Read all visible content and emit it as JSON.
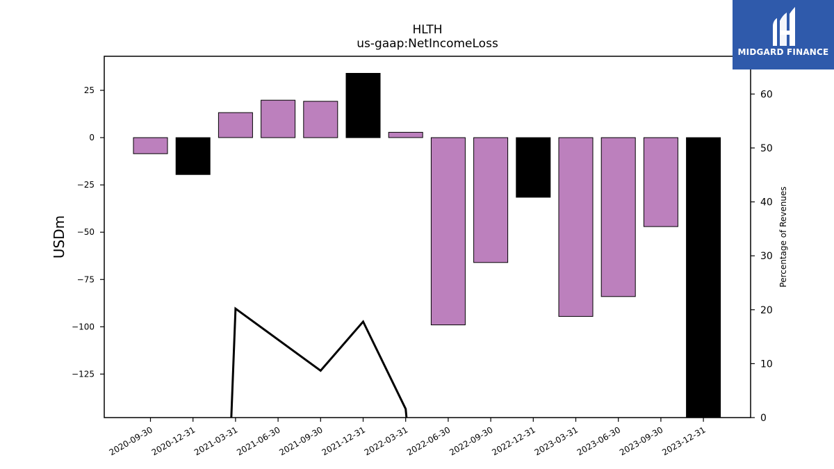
{
  "chart_data": {
    "type": "bar",
    "title": "HLTH",
    "subtitle": "us-gaap:NetIncomeLoss",
    "ylabel": "USDm",
    "y2label": "Percentage of Revenues",
    "categories": [
      "2020-09-30",
      "2020-12-31",
      "2021-03-31",
      "2021-06-30",
      "2021-09-30",
      "2021-12-31",
      "2022-03-31",
      "2022-06-30",
      "2022-09-30",
      "2022-12-31",
      "2023-03-31",
      "2023-06-30",
      "2023-09-30",
      "2023-12-31"
    ],
    "values": [
      -8.5,
      -19.5,
      13.2,
      19.8,
      19.2,
      34.0,
      2.8,
      -99.0,
      -66.0,
      -31.5,
      -94.5,
      -84.0,
      -47.0,
      -148.0
    ],
    "bar_colors": [
      "#bc80bd",
      "#000000",
      "#bc80bd",
      "#bc80bd",
      "#bc80bd",
      "#000000",
      "#bc80bd",
      "#bc80bd",
      "#bc80bd",
      "#000000",
      "#bc80bd",
      "#bc80bd",
      "#bc80bd",
      "#000000"
    ],
    "ylim": [
      -148,
      43
    ],
    "yticks": [
      25,
      0,
      -25,
      -50,
      -75,
      -100,
      -125
    ],
    "y2lim": [
      0,
      67
    ],
    "y2ticks": [
      0,
      10,
      20,
      30,
      40,
      50,
      60
    ],
    "line_series": {
      "x_index": [
        1.9,
        2.0,
        4.0,
        5.0,
        6.0,
        6.02
      ],
      "values": [
        0,
        20.2,
        8.7,
        17.8,
        1.6,
        0
      ]
    },
    "grid": false
  },
  "logo": {
    "text": "MIDGARD FINANCE"
  }
}
